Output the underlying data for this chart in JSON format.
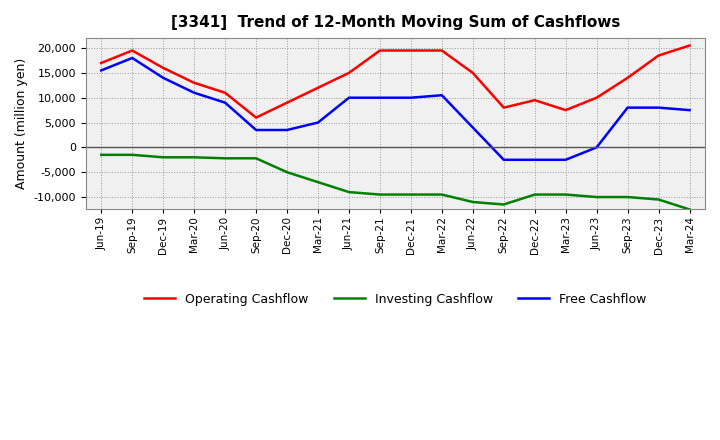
{
  "title": "[3341]  Trend of 12-Month Moving Sum of Cashflows",
  "ylabel": "Amount (million yen)",
  "xlabels": [
    "Jun-19",
    "Sep-19",
    "Dec-19",
    "Mar-20",
    "Jun-20",
    "Sep-20",
    "Dec-20",
    "Mar-21",
    "Jun-21",
    "Sep-21",
    "Dec-21",
    "Mar-22",
    "Jun-22",
    "Sep-22",
    "Dec-22",
    "Mar-23",
    "Jun-23",
    "Sep-23",
    "Dec-23",
    "Mar-24"
  ],
  "operating": [
    17000,
    19500,
    16000,
    13000,
    11000,
    6000,
    9000,
    12000,
    15000,
    19500,
    19500,
    19500,
    15000,
    8000,
    9500,
    7500,
    10000,
    14000,
    18500,
    20500
  ],
  "investing": [
    -1500,
    -1500,
    -2000,
    -2000,
    -2200,
    -2200,
    -5000,
    -7000,
    -9000,
    -9500,
    -9500,
    -9500,
    -11000,
    -11500,
    -9500,
    -9500,
    -10000,
    -10000,
    -10500,
    -12500
  ],
  "free": [
    15500,
    18000,
    14000,
    11000,
    9000,
    3500,
    3500,
    5000,
    10000,
    10000,
    10000,
    10500,
    4000,
    -2500,
    -2500,
    -2500,
    0,
    8000,
    8000,
    7500
  ],
  "operating_color": "#FF0000",
  "investing_color": "#008000",
  "free_color": "#0000FF",
  "ylim": [
    -12500,
    22000
  ],
  "yticks": [
    -10000,
    -5000,
    0,
    5000,
    10000,
    15000,
    20000
  ],
  "background_color": "#FFFFFF",
  "plot_bg_color": "#F0F0F0",
  "grid_color": "#999999"
}
